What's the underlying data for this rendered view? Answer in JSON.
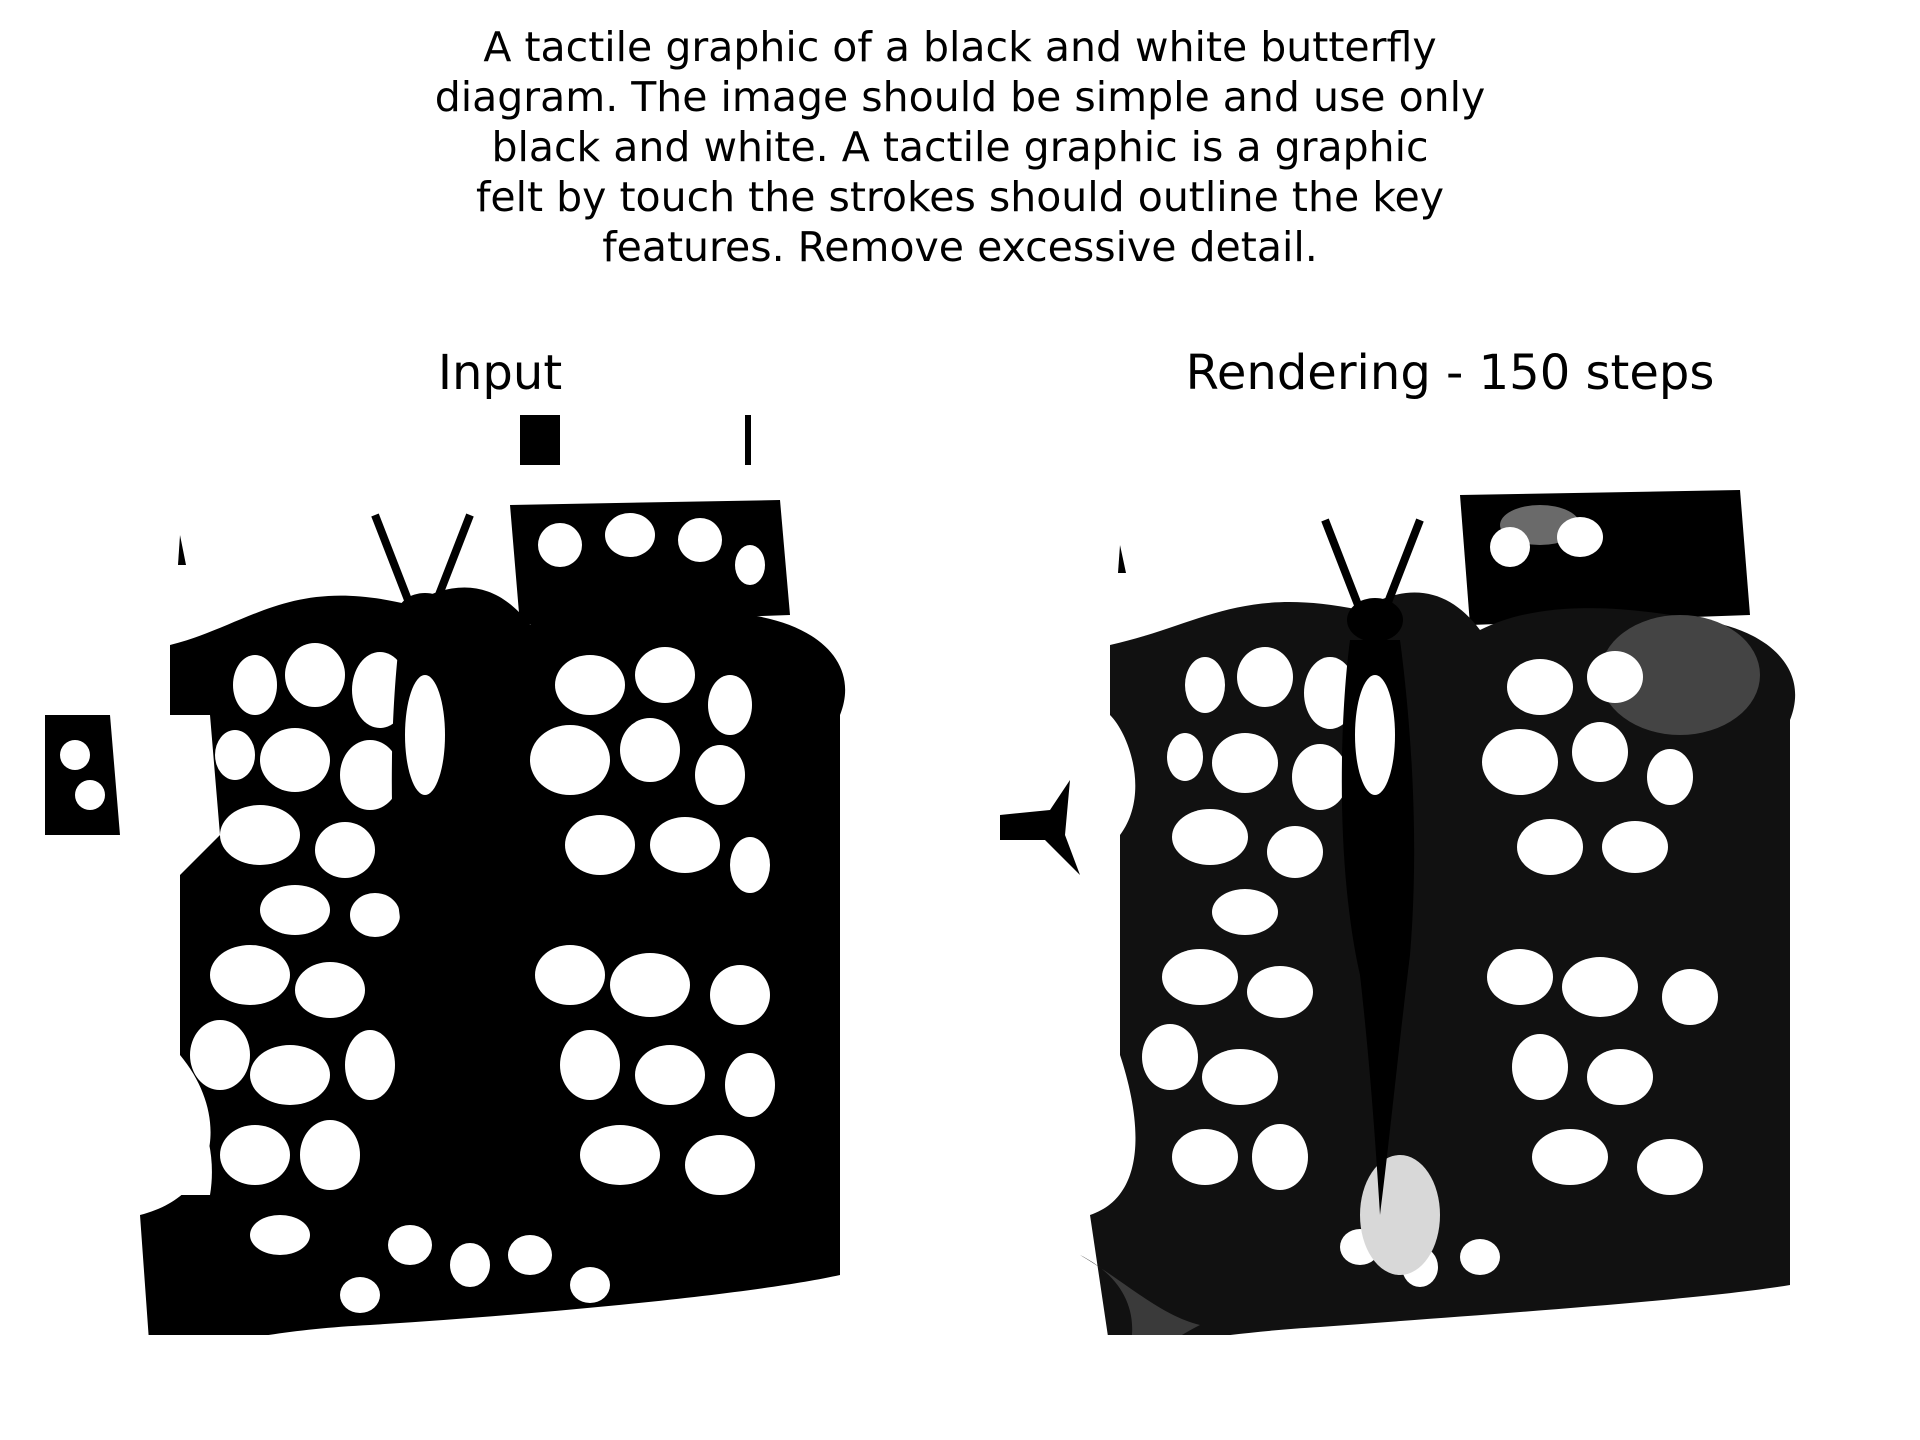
{
  "prompt": {
    "lines": [
      "A tactile graphic of a black and white butterfly",
      "diagram. The image should be simple and use only",
      "black and white. A tactile graphic is a graphic",
      "felt by touch the strokes should outline the key",
      "features. Remove excessive detail."
    ]
  },
  "panels": {
    "input": {
      "title": "Input"
    },
    "rendering": {
      "title": "Rendering - 150 steps"
    }
  },
  "colors": {
    "ink": "#000000",
    "paper": "#ffffff",
    "rendering_gray": "#3a3a3a"
  }
}
